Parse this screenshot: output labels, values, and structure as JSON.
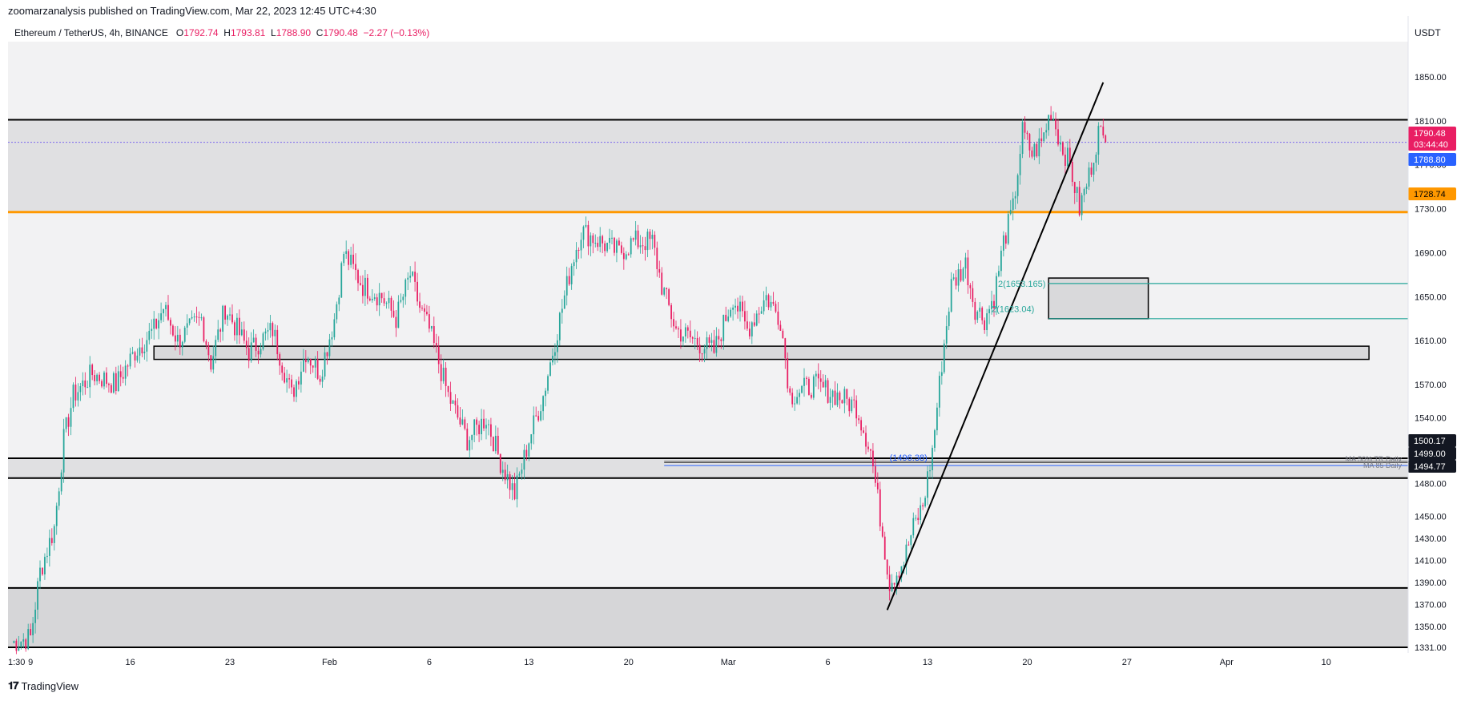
{
  "caption": "zoomarzanalysis published on TradingView.com, Mar 22, 2023 12:45 UTC+4:30",
  "legend": {
    "symbol": "Ethereum / TetherUS, 4h, BINANCE",
    "o_label": "O",
    "o_value": "1792.74",
    "h_label": "H",
    "h_value": "1793.81",
    "l_label": "L",
    "l_value": "1788.90",
    "c_label": "C",
    "c_value": "1790.48",
    "change": "−2.27 (−0.13%)"
  },
  "currency": "USDT",
  "footer": {
    "logo": "TradingView"
  },
  "chart_data": {
    "type": "candlestick",
    "ylim": [
      1331,
      1870
    ],
    "price_ticks": [
      1850,
      1810,
      1770,
      1730,
      1690,
      1650,
      1610,
      1570,
      1540,
      1510,
      1480,
      1450,
      1430,
      1410,
      1390,
      1370,
      1350,
      1331
    ],
    "price_tick_labels": [
      "1850.00",
      "1810.00",
      "1770.00",
      "1730.00",
      "1690.00",
      "1650.00",
      "1610.00",
      "1570.00",
      "1540.00",
      "1510.00",
      "1480.00",
      "1450.00",
      "1430.00",
      "1410.00",
      "1390.00",
      "1370.00",
      "1350.00",
      "1331.00"
    ],
    "time_labels": [
      "1:30",
      "9",
      "16",
      "23",
      "Feb",
      "6",
      "13",
      "20",
      "Mar",
      "6",
      "13",
      "20",
      "27",
      "Apr",
      "10"
    ],
    "time_label_bar_index": [
      -1,
      8,
      50,
      92,
      134,
      176,
      218,
      260,
      302,
      344,
      386,
      428,
      470,
      512,
      554
    ],
    "bars_total": 590,
    "candle_waypoints": [
      [
        0,
        1335
      ],
      [
        8,
        1340
      ],
      [
        12,
        1400
      ],
      [
        18,
        1440
      ],
      [
        22,
        1520
      ],
      [
        26,
        1560
      ],
      [
        34,
        1580
      ],
      [
        44,
        1570
      ],
      [
        52,
        1600
      ],
      [
        60,
        1620
      ],
      [
        64,
        1640
      ],
      [
        70,
        1610
      ],
      [
        80,
        1630
      ],
      [
        84,
        1590
      ],
      [
        90,
        1640
      ],
      [
        100,
        1600
      ],
      [
        110,
        1620
      ],
      [
        118,
        1560
      ],
      [
        124,
        1600
      ],
      [
        130,
        1580
      ],
      [
        136,
        1630
      ],
      [
        140,
        1690
      ],
      [
        148,
        1660
      ],
      [
        156,
        1650
      ],
      [
        162,
        1630
      ],
      [
        168,
        1670
      ],
      [
        172,
        1640
      ],
      [
        176,
        1620
      ],
      [
        184,
        1560
      ],
      [
        192,
        1520
      ],
      [
        200,
        1540
      ],
      [
        206,
        1500
      ],
      [
        212,
        1470
      ],
      [
        218,
        1520
      ],
      [
        224,
        1560
      ],
      [
        230,
        1620
      ],
      [
        236,
        1680
      ],
      [
        240,
        1710
      ],
      [
        248,
        1700
      ],
      [
        256,
        1690
      ],
      [
        262,
        1700
      ],
      [
        270,
        1700
      ],
      [
        274,
        1660
      ],
      [
        280,
        1620
      ],
      [
        288,
        1610
      ],
      [
        296,
        1600
      ],
      [
        304,
        1650
      ],
      [
        310,
        1620
      ],
      [
        318,
        1650
      ],
      [
        324,
        1630
      ],
      [
        328,
        1560
      ],
      [
        338,
        1570
      ],
      [
        348,
        1560
      ],
      [
        356,
        1550
      ],
      [
        362,
        1510
      ],
      [
        366,
        1450
      ],
      [
        370,
        1390
      ],
      [
        376,
        1410
      ],
      [
        380,
        1440
      ],
      [
        384,
        1460
      ],
      [
        388,
        1510
      ],
      [
        392,
        1590
      ],
      [
        396,
        1660
      ],
      [
        402,
        1680
      ],
      [
        406,
        1640
      ],
      [
        410,
        1630
      ],
      [
        414,
        1650
      ],
      [
        418,
        1700
      ],
      [
        422,
        1730
      ],
      [
        426,
        1800
      ],
      [
        430,
        1780
      ],
      [
        434,
        1790
      ],
      [
        438,
        1820
      ],
      [
        442,
        1790
      ],
      [
        446,
        1770
      ],
      [
        450,
        1730
      ],
      [
        454,
        1760
      ],
      [
        458,
        1800
      ],
      [
        461,
        1790
      ]
    ],
    "candle_colors": {
      "up": "#26a69a",
      "down": "#e91e63"
    },
    "zones": [
      {
        "top": 1811,
        "bottom": 1727,
        "fill": "#e0e0e2",
        "x_end": 590
      },
      {
        "top": 1503,
        "bottom": 1485,
        "fill": "#e0e0e2",
        "x_end": 590
      },
      {
        "top": 1385,
        "bottom": 1331,
        "fill": "#d6d6d8",
        "x_end": 590
      },
      {
        "top": 1605,
        "bottom": 1593,
        "fill": "#d9d9db",
        "x_start": 60,
        "x_end": 572
      },
      {
        "top": 1667,
        "bottom": 1630,
        "fill": "#d9d9db",
        "x_start": 437,
        "x_end": 479
      }
    ],
    "lines": [
      {
        "price": 1811,
        "color": "#000000",
        "width": 2
      },
      {
        "price": 1727,
        "color": "#ff9800",
        "width": 3
      },
      {
        "price": 1503,
        "color": "#000000",
        "width": 2
      },
      {
        "price": 1485,
        "color": "#000000",
        "width": 2
      },
      {
        "price": 1385,
        "color": "#000000",
        "width": 2
      },
      {
        "price": 1331,
        "color": "#000000",
        "width": 2
      }
    ],
    "current_price_line": 1790.48,
    "support_line_label": "(1496.38)",
    "fib_labels": [
      "2(1653.165)",
      "2(1623.04)"
    ],
    "ma_labels": [
      "MA 50% TR Daily",
      "MA 85 Daily"
    ],
    "price_badges": [
      {
        "price": 1790.48,
        "text": "1790.48",
        "sub": "03:44:40",
        "bg": "#e91e63",
        "fg": "#ffffff"
      },
      {
        "price": 1788.8,
        "text": "1788.80",
        "bg": "#2962ff",
        "fg": "#ffffff"
      },
      {
        "price": 1728.74,
        "text": "1728.74",
        "bg": "#ff9800",
        "fg": "#000000"
      },
      {
        "price": 1500.17,
        "text": "1500.17",
        "bg": "#131722",
        "fg": "#ffffff"
      },
      {
        "price": 1499.0,
        "text": "1499.00",
        "bg": "#131722",
        "fg": "#ffffff"
      },
      {
        "price": 1494.77,
        "text": "1494.77",
        "bg": "#131722",
        "fg": "#ffffff"
      }
    ]
  }
}
